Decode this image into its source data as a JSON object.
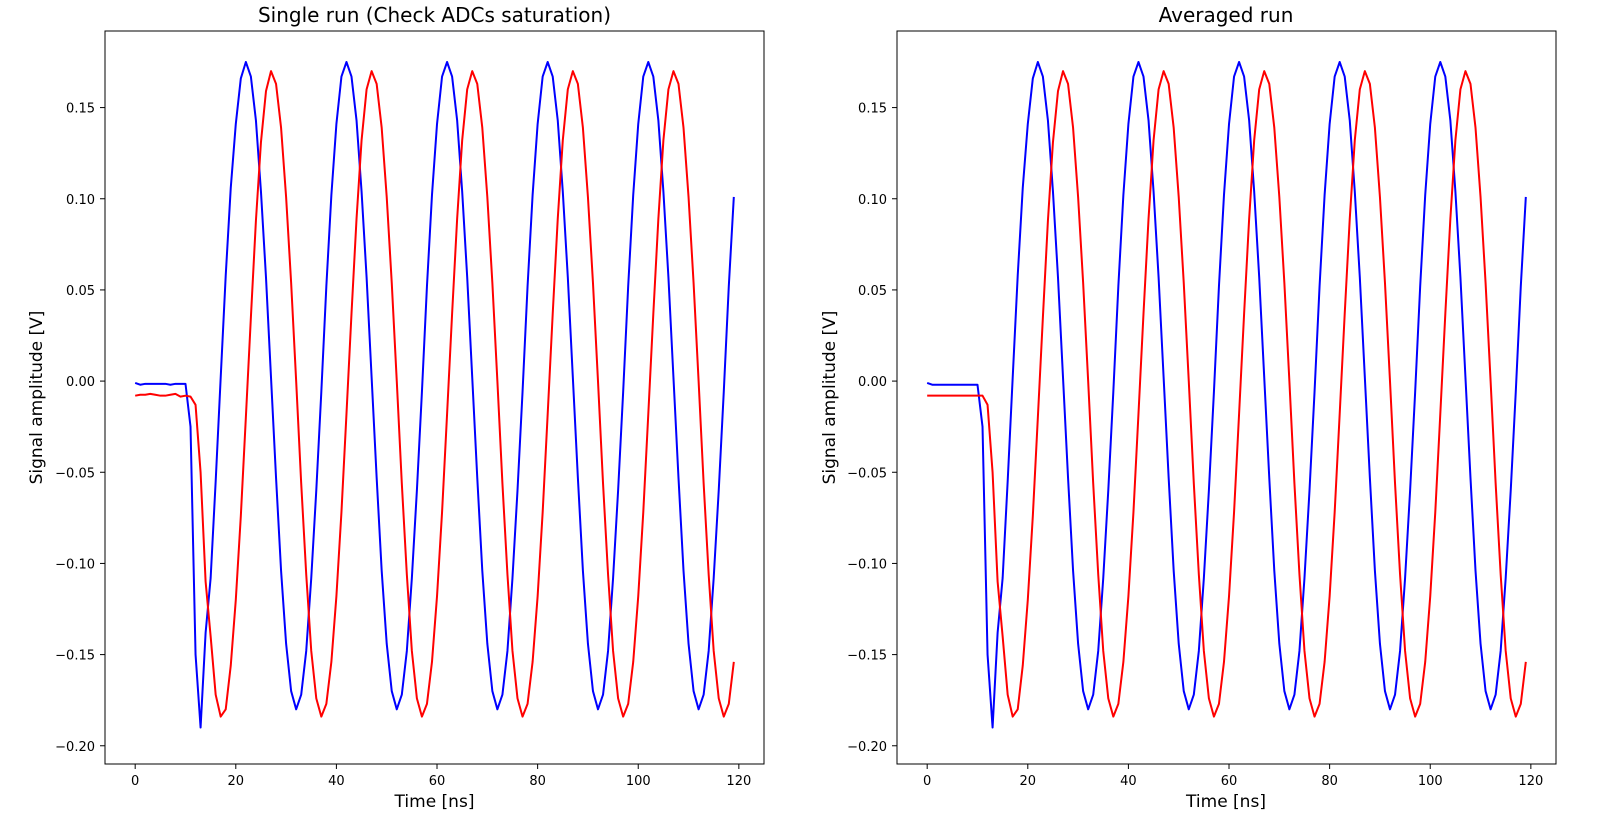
{
  "chart_data": [
    {
      "type": "line",
      "title": "Single run (Check ADCs saturation)",
      "xlabel": "Time [ns]",
      "ylabel": "Signal amplitude [V]",
      "xlim": [
        -6,
        125
      ],
      "ylim": [
        -0.21,
        0.192
      ],
      "xticks": [
        0,
        20,
        40,
        60,
        80,
        100,
        120
      ],
      "yticks": [
        -0.2,
        -0.15,
        -0.1,
        -0.05,
        0.0,
        0.05,
        0.1,
        0.15
      ],
      "xtick_labels": [
        "0",
        "20",
        "40",
        "60",
        "80",
        "100",
        "120"
      ],
      "ytick_labels": [
        "−0.20",
        "−0.15",
        "−0.10",
        "−0.05",
        "0.00",
        "0.05",
        "0.10",
        "0.15"
      ],
      "grid": false,
      "series": [
        {
          "color": "#0000ff",
          "x": [
            0,
            1,
            2,
            3,
            4,
            5,
            6,
            7,
            8,
            9,
            10,
            11,
            12,
            13,
            14,
            15,
            16,
            17,
            18,
            19,
            20,
            21,
            22,
            23,
            24,
            25,
            26,
            27,
            28,
            29,
            30,
            31,
            32,
            33,
            34,
            35,
            36,
            37,
            38,
            39,
            40,
            41,
            42,
            43,
            44,
            45,
            46,
            47,
            48,
            49,
            50,
            51,
            52,
            53,
            54,
            55,
            56,
            57,
            58,
            59,
            60,
            61,
            62,
            63,
            64,
            65,
            66,
            67,
            68,
            69,
            70,
            71,
            72,
            73,
            74,
            75,
            76,
            77,
            78,
            79,
            80,
            81,
            82,
            83,
            84,
            85,
            86,
            87,
            88,
            89,
            90,
            91,
            92,
            93,
            94,
            95,
            96,
            97,
            98,
            99,
            100,
            101,
            102,
            103,
            104,
            105,
            106,
            107,
            108,
            109,
            110,
            111,
            112,
            113,
            114,
            115,
            116,
            117,
            118,
            119
          ],
          "y": [
            -0.001,
            -0.002,
            -0.0015,
            -0.0015,
            -0.0015,
            -0.0015,
            -0.0015,
            -0.002,
            -0.0015,
            -0.0015,
            -0.0015,
            -0.025,
            -0.15,
            -0.19,
            -0.138,
            -0.108,
            -0.055,
            0.002,
            0.058,
            0.106,
            0.141,
            0.166,
            0.175,
            0.167,
            0.143,
            0.104,
            0.057,
            0.002,
            -0.053,
            -0.104,
            -0.144,
            -0.17,
            -0.18,
            -0.172,
            -0.148,
            -0.108,
            -0.06,
            -0.006,
            0.052,
            0.102,
            0.141,
            0.167,
            0.175,
            0.167,
            0.143,
            0.104,
            0.057,
            0.002,
            -0.053,
            -0.104,
            -0.144,
            -0.17,
            -0.18,
            -0.172,
            -0.148,
            -0.108,
            -0.06,
            -0.006,
            0.052,
            0.102,
            0.141,
            0.167,
            0.175,
            0.167,
            0.143,
            0.104,
            0.057,
            0.002,
            -0.053,
            -0.104,
            -0.144,
            -0.17,
            -0.18,
            -0.172,
            -0.148,
            -0.108,
            -0.06,
            -0.006,
            0.052,
            0.102,
            0.141,
            0.167,
            0.175,
            0.167,
            0.143,
            0.104,
            0.057,
            0.002,
            -0.053,
            -0.104,
            -0.144,
            -0.17,
            -0.18,
            -0.172,
            -0.148,
            -0.108,
            -0.06,
            -0.006,
            0.052,
            0.102,
            0.141,
            0.167,
            0.175,
            0.167,
            0.143,
            0.104,
            0.057,
            0.002,
            -0.053,
            -0.104,
            -0.144,
            -0.17,
            -0.18,
            -0.172,
            -0.148,
            -0.108,
            -0.06,
            -0.006,
            0.052,
            0.101
          ]
        },
        {
          "color": "#ff0000",
          "x": [
            0,
            1,
            2,
            3,
            4,
            5,
            6,
            7,
            8,
            9,
            10,
            11,
            12,
            13,
            14,
            15,
            16,
            17,
            18,
            19,
            20,
            21,
            22,
            23,
            24,
            25,
            26,
            27,
            28,
            29,
            30,
            31,
            32,
            33,
            34,
            35,
            36,
            37,
            38,
            39,
            40,
            41,
            42,
            43,
            44,
            45,
            46,
            47,
            48,
            49,
            50,
            51,
            52,
            53,
            54,
            55,
            56,
            57,
            58,
            59,
            60,
            61,
            62,
            63,
            64,
            65,
            66,
            67,
            68,
            69,
            70,
            71,
            72,
            73,
            74,
            75,
            76,
            77,
            78,
            79,
            80,
            81,
            82,
            83,
            84,
            85,
            86,
            87,
            88,
            89,
            90,
            91,
            92,
            93,
            94,
            95,
            96,
            97,
            98,
            99,
            100,
            101,
            102,
            103,
            104,
            105,
            106,
            107,
            108,
            109,
            110,
            111,
            112,
            113,
            114,
            115,
            116,
            117,
            118,
            119
          ],
          "y": [
            -0.008,
            -0.0075,
            -0.0075,
            -0.007,
            -0.0075,
            -0.008,
            -0.008,
            -0.0075,
            -0.007,
            -0.0085,
            -0.008,
            -0.0085,
            -0.013,
            -0.05,
            -0.11,
            -0.14,
            -0.172,
            -0.184,
            -0.18,
            -0.156,
            -0.12,
            -0.074,
            -0.02,
            0.035,
            0.088,
            0.131,
            0.159,
            0.17,
            0.163,
            0.139,
            0.101,
            0.054,
            0.0,
            -0.056,
            -0.106,
            -0.148,
            -0.174,
            -0.184,
            -0.177,
            -0.154,
            -0.118,
            -0.072,
            -0.018,
            0.037,
            0.089,
            0.132,
            0.16,
            0.17,
            0.163,
            0.139,
            0.101,
            0.054,
            0.0,
            -0.056,
            -0.106,
            -0.148,
            -0.174,
            -0.184,
            -0.177,
            -0.154,
            -0.118,
            -0.072,
            -0.018,
            0.037,
            0.089,
            0.132,
            0.16,
            0.17,
            0.163,
            0.139,
            0.101,
            0.054,
            0.0,
            -0.056,
            -0.106,
            -0.148,
            -0.174,
            -0.184,
            -0.177,
            -0.154,
            -0.118,
            -0.072,
            -0.018,
            0.037,
            0.089,
            0.132,
            0.16,
            0.17,
            0.163,
            0.139,
            0.101,
            0.054,
            0.0,
            -0.056,
            -0.106,
            -0.148,
            -0.174,
            -0.184,
            -0.177,
            -0.154,
            -0.118,
            -0.072,
            -0.018,
            0.037,
            0.089,
            0.132,
            0.16,
            0.17,
            0.163,
            0.139,
            0.101,
            0.054,
            0.0,
            -0.056,
            -0.106,
            -0.148,
            -0.174,
            -0.184,
            -0.177,
            -0.154
          ]
        }
      ]
    },
    {
      "type": "line",
      "title": "Averaged run",
      "xlabel": "Time [ns]",
      "ylabel": "Signal amplitude [V]",
      "xlim": [
        -6,
        125
      ],
      "ylim": [
        -0.21,
        0.192
      ],
      "xticks": [
        0,
        20,
        40,
        60,
        80,
        100,
        120
      ],
      "yticks": [
        -0.2,
        -0.15,
        -0.1,
        -0.05,
        0.0,
        0.05,
        0.1,
        0.15
      ],
      "xtick_labels": [
        "0",
        "20",
        "40",
        "60",
        "80",
        "100",
        "120"
      ],
      "ytick_labels": [
        "−0.20",
        "−0.15",
        "−0.10",
        "−0.05",
        "0.00",
        "0.05",
        "0.10",
        "0.15"
      ],
      "grid": false,
      "series": [
        {
          "color": "#0000ff",
          "x": [
            0,
            1,
            2,
            3,
            4,
            5,
            6,
            7,
            8,
            9,
            10,
            11,
            12,
            13,
            14,
            15,
            16,
            17,
            18,
            19,
            20,
            21,
            22,
            23,
            24,
            25,
            26,
            27,
            28,
            29,
            30,
            31,
            32,
            33,
            34,
            35,
            36,
            37,
            38,
            39,
            40,
            41,
            42,
            43,
            44,
            45,
            46,
            47,
            48,
            49,
            50,
            51,
            52,
            53,
            54,
            55,
            56,
            57,
            58,
            59,
            60,
            61,
            62,
            63,
            64,
            65,
            66,
            67,
            68,
            69,
            70,
            71,
            72,
            73,
            74,
            75,
            76,
            77,
            78,
            79,
            80,
            81,
            82,
            83,
            84,
            85,
            86,
            87,
            88,
            89,
            90,
            91,
            92,
            93,
            94,
            95,
            96,
            97,
            98,
            99,
            100,
            101,
            102,
            103,
            104,
            105,
            106,
            107,
            108,
            109,
            110,
            111,
            112,
            113,
            114,
            115,
            116,
            117,
            118,
            119
          ],
          "y": [
            -0.001,
            -0.002,
            -0.002,
            -0.002,
            -0.002,
            -0.002,
            -0.002,
            -0.002,
            -0.002,
            -0.002,
            -0.002,
            -0.025,
            -0.15,
            -0.19,
            -0.138,
            -0.108,
            -0.055,
            0.002,
            0.058,
            0.106,
            0.141,
            0.166,
            0.175,
            0.167,
            0.143,
            0.104,
            0.057,
            0.002,
            -0.053,
            -0.104,
            -0.144,
            -0.17,
            -0.18,
            -0.172,
            -0.148,
            -0.108,
            -0.06,
            -0.006,
            0.052,
            0.102,
            0.141,
            0.167,
            0.175,
            0.167,
            0.143,
            0.104,
            0.057,
            0.002,
            -0.053,
            -0.104,
            -0.144,
            -0.17,
            -0.18,
            -0.172,
            -0.148,
            -0.108,
            -0.06,
            -0.006,
            0.052,
            0.102,
            0.141,
            0.167,
            0.175,
            0.167,
            0.143,
            0.104,
            0.057,
            0.002,
            -0.053,
            -0.104,
            -0.144,
            -0.17,
            -0.18,
            -0.172,
            -0.148,
            -0.108,
            -0.06,
            -0.006,
            0.052,
            0.102,
            0.141,
            0.167,
            0.175,
            0.167,
            0.143,
            0.104,
            0.057,
            0.002,
            -0.053,
            -0.104,
            -0.144,
            -0.17,
            -0.18,
            -0.172,
            -0.148,
            -0.108,
            -0.06,
            -0.006,
            0.052,
            0.102,
            0.141,
            0.167,
            0.175,
            0.167,
            0.143,
            0.104,
            0.057,
            0.002,
            -0.053,
            -0.104,
            -0.144,
            -0.17,
            -0.18,
            -0.172,
            -0.148,
            -0.108,
            -0.06,
            -0.006,
            0.052,
            0.101
          ]
        },
        {
          "color": "#ff0000",
          "x": [
            0,
            1,
            2,
            3,
            4,
            5,
            6,
            7,
            8,
            9,
            10,
            11,
            12,
            13,
            14,
            15,
            16,
            17,
            18,
            19,
            20,
            21,
            22,
            23,
            24,
            25,
            26,
            27,
            28,
            29,
            30,
            31,
            32,
            33,
            34,
            35,
            36,
            37,
            38,
            39,
            40,
            41,
            42,
            43,
            44,
            45,
            46,
            47,
            48,
            49,
            50,
            51,
            52,
            53,
            54,
            55,
            56,
            57,
            58,
            59,
            60,
            61,
            62,
            63,
            64,
            65,
            66,
            67,
            68,
            69,
            70,
            71,
            72,
            73,
            74,
            75,
            76,
            77,
            78,
            79,
            80,
            81,
            82,
            83,
            84,
            85,
            86,
            87,
            88,
            89,
            90,
            91,
            92,
            93,
            94,
            95,
            96,
            97,
            98,
            99,
            100,
            101,
            102,
            103,
            104,
            105,
            106,
            107,
            108,
            109,
            110,
            111,
            112,
            113,
            114,
            115,
            116,
            117,
            118,
            119
          ],
          "y": [
            -0.008,
            -0.008,
            -0.008,
            -0.008,
            -0.008,
            -0.008,
            -0.008,
            -0.008,
            -0.008,
            -0.008,
            -0.008,
            -0.008,
            -0.013,
            -0.05,
            -0.11,
            -0.14,
            -0.172,
            -0.184,
            -0.18,
            -0.156,
            -0.12,
            -0.074,
            -0.02,
            0.035,
            0.088,
            0.131,
            0.159,
            0.17,
            0.163,
            0.139,
            0.101,
            0.054,
            0.0,
            -0.056,
            -0.106,
            -0.148,
            -0.174,
            -0.184,
            -0.177,
            -0.154,
            -0.118,
            -0.072,
            -0.018,
            0.037,
            0.089,
            0.132,
            0.16,
            0.17,
            0.163,
            0.139,
            0.101,
            0.054,
            0.0,
            -0.056,
            -0.106,
            -0.148,
            -0.174,
            -0.184,
            -0.177,
            -0.154,
            -0.118,
            -0.072,
            -0.018,
            0.037,
            0.089,
            0.132,
            0.16,
            0.17,
            0.163,
            0.139,
            0.101,
            0.054,
            0.0,
            -0.056,
            -0.106,
            -0.148,
            -0.174,
            -0.184,
            -0.177,
            -0.154,
            -0.118,
            -0.072,
            -0.018,
            0.037,
            0.089,
            0.132,
            0.16,
            0.17,
            0.163,
            0.139,
            0.101,
            0.054,
            0.0,
            -0.056,
            -0.106,
            -0.148,
            -0.174,
            -0.184,
            -0.177,
            -0.154,
            -0.118,
            -0.072,
            -0.018,
            0.037,
            0.089,
            0.132,
            0.16,
            0.17,
            0.163,
            0.139,
            0.101,
            0.054,
            0.0,
            -0.056,
            -0.106,
            -0.148,
            -0.174,
            -0.184,
            -0.177,
            -0.154
          ]
        }
      ]
    }
  ]
}
